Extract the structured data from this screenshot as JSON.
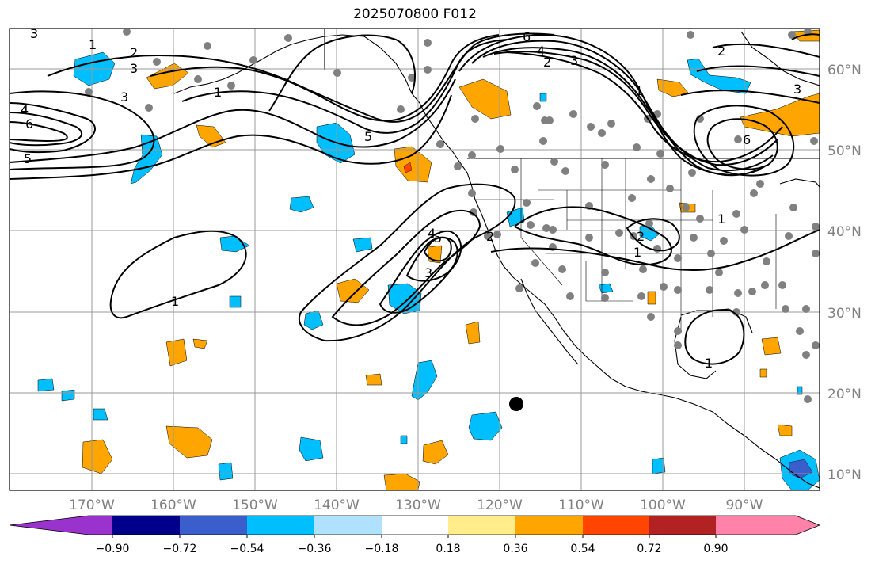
{
  "title": "2025070800 F012",
  "lon_labels": [
    "170°W",
    "160°W",
    "150°W",
    "140°W",
    "130°W",
    "120°W",
    "110°W",
    "100°W",
    "90°W"
  ],
  "lat_labels": [
    "60°N",
    "50°N",
    "40°N",
    "30°N",
    "20°N",
    "10°N"
  ],
  "contour_labels": [
    "1",
    "2",
    "3",
    "4",
    "5",
    "6"
  ],
  "colorbar": {
    "ticks": [
      "−0.90",
      "−0.72",
      "−0.54",
      "−0.36",
      "−0.18",
      "0.18",
      "0.36",
      "0.54",
      "0.72",
      "0.90"
    ],
    "colors": [
      "#9a32cd",
      "#00008b",
      "#3a5fcd",
      "#00bfff",
      "#b0e2ff",
      "#ffffff",
      "#ffec8b",
      "#ffa500",
      "#ff4500",
      "#b22222",
      "#ff82ab"
    ]
  },
  "chart_data": {
    "type": "map",
    "title": "2025070800 F012",
    "colorbar_levels": [
      -0.9,
      -0.72,
      -0.54,
      -0.36,
      -0.18,
      0.18,
      0.36,
      0.54,
      0.72,
      0.9
    ],
    "lon_ticks": [
      -170,
      -160,
      -150,
      -140,
      -130,
      -120,
      -110,
      -100,
      -90
    ],
    "lat_ticks": [
      10,
      20,
      30,
      40,
      50,
      60
    ],
    "grid": true
  }
}
